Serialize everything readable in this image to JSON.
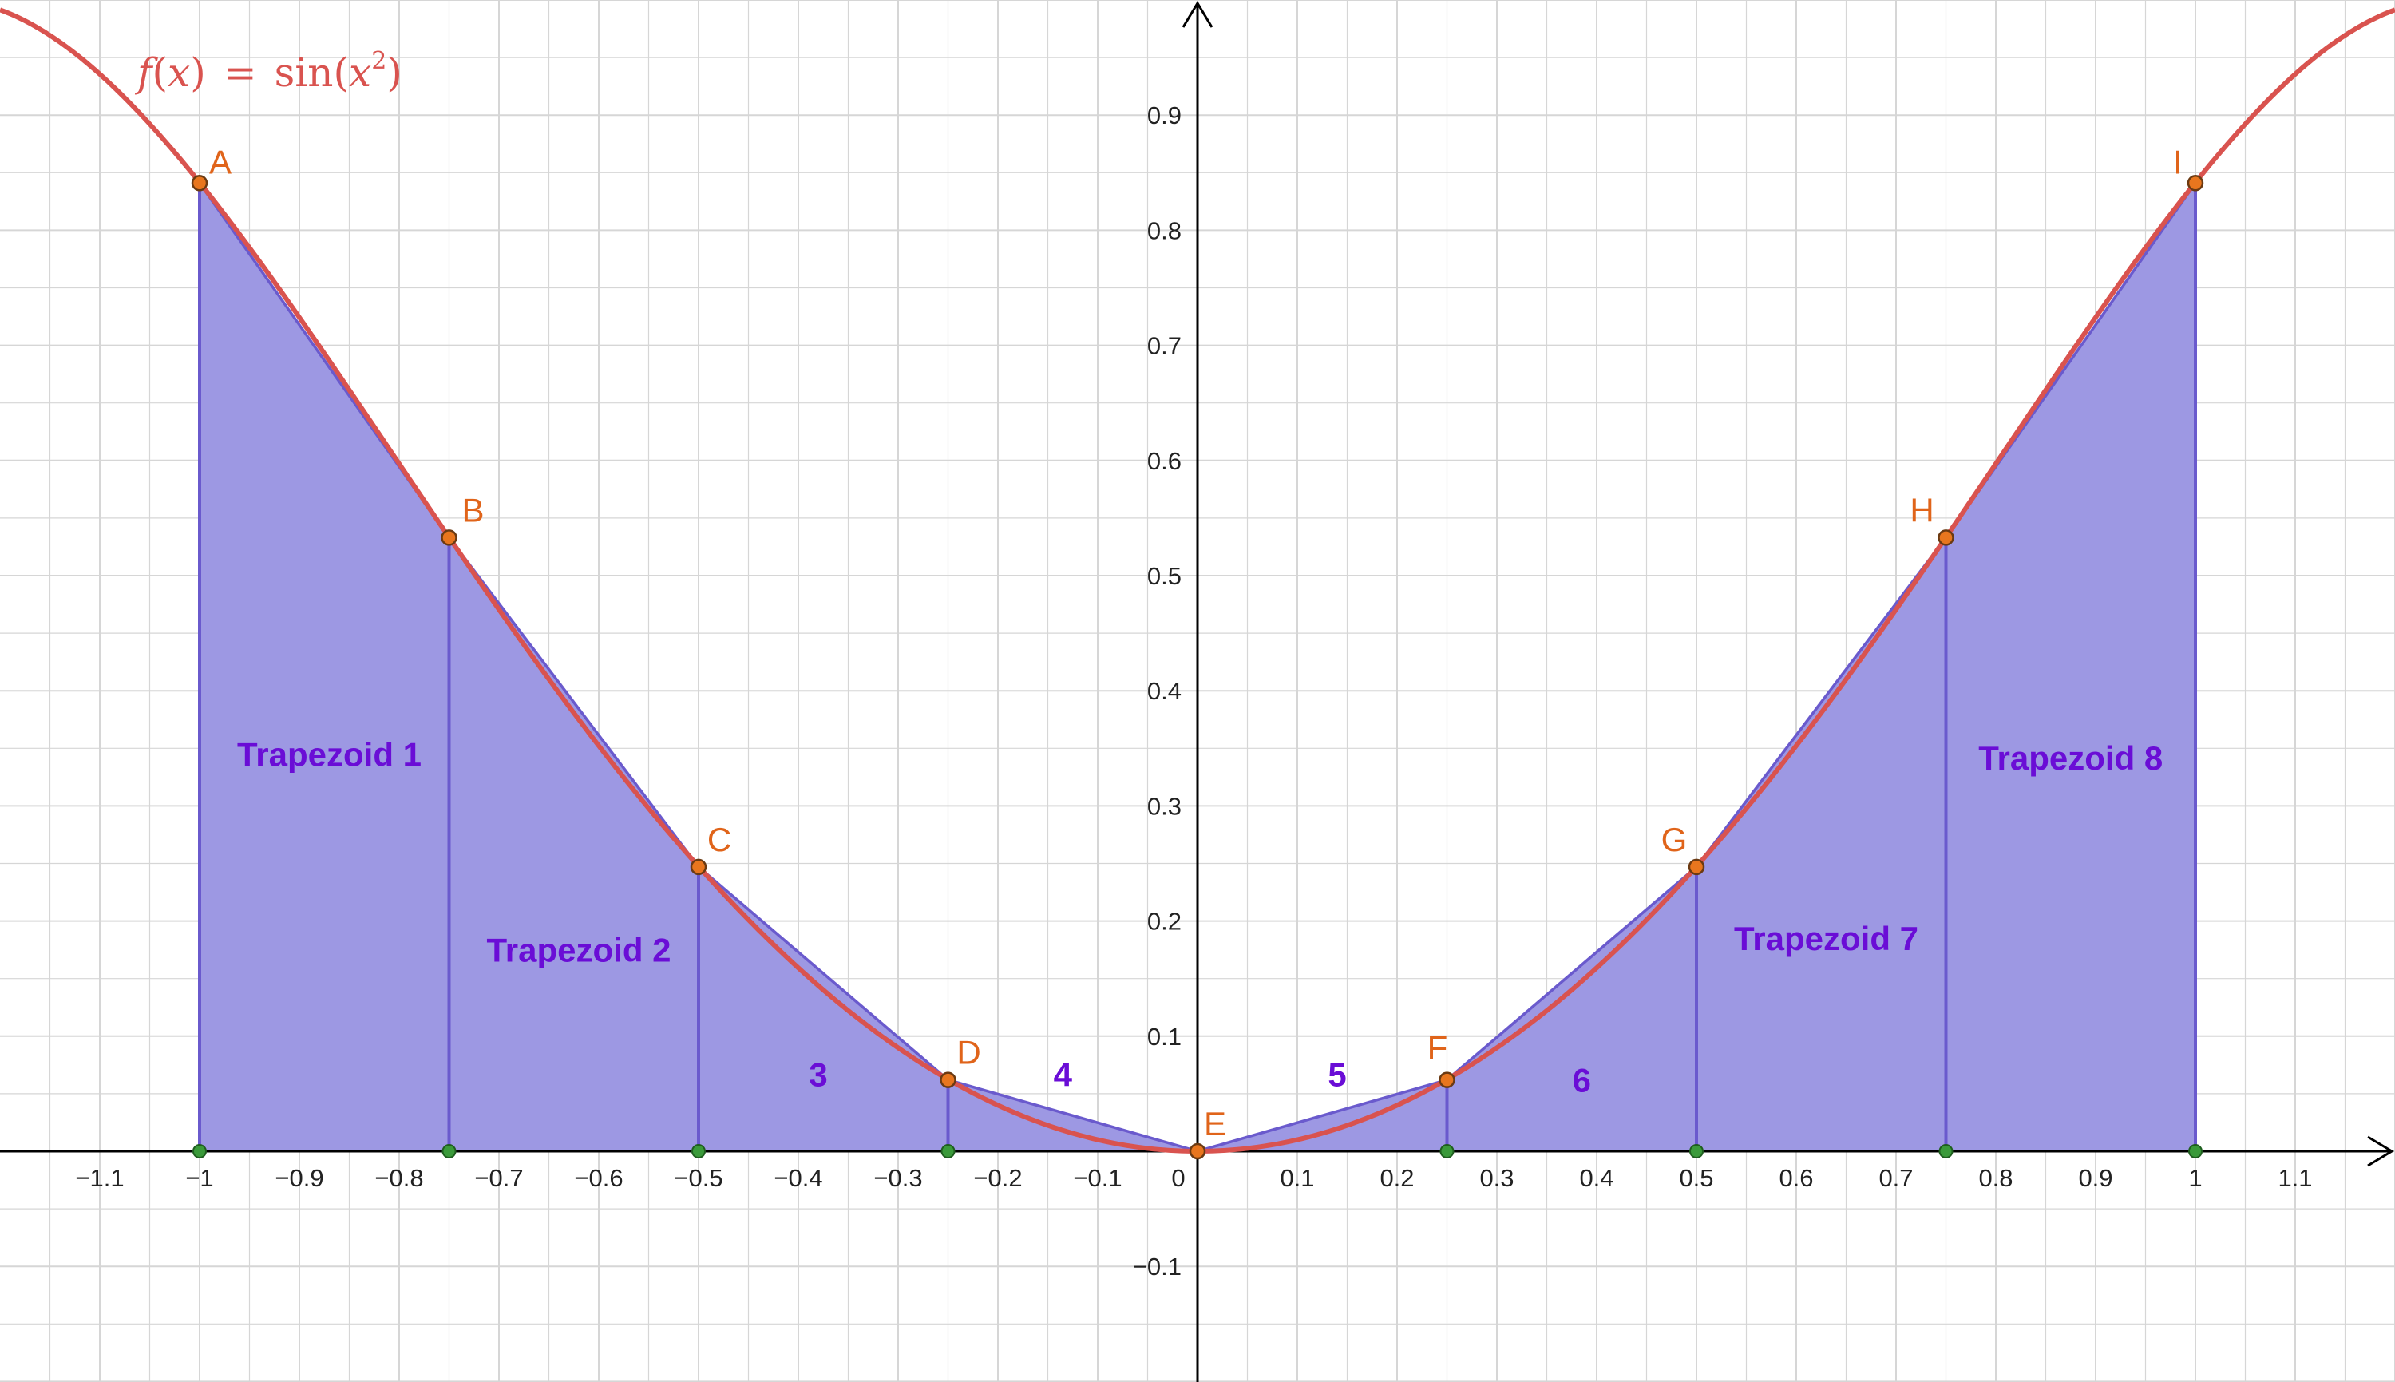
{
  "function_label": {
    "name": "f",
    "arg": "x",
    "equals": "=",
    "body": "sin",
    "sup": "2"
  },
  "colors": {
    "curve": "#d9534f",
    "fill": "#9d98e3",
    "edge": "#6a5acd",
    "point": "#e8761e",
    "point_stroke": "#6b3a12",
    "foot_point": "#3a9a3a",
    "label_orange": "#e0641a",
    "label_purple": "#6a0dd6",
    "grid": "#d6d6d6",
    "axis": "#000000"
  },
  "chart_data": {
    "type": "area",
    "function": "sin(x^2)",
    "xlim": [
      -1.2,
      1.2
    ],
    "ylim": [
      -0.2,
      1.0
    ],
    "x_ticks": [
      -1.1,
      -1,
      -0.9,
      -0.8,
      -0.7,
      -0.6,
      -0.5,
      -0.4,
      -0.3,
      -0.2,
      -0.1,
      0,
      0.1,
      0.2,
      0.3,
      0.4,
      0.5,
      0.6,
      0.7,
      0.8,
      0.9,
      1,
      1.1
    ],
    "x_tick_labels": [
      "−1.1",
      "−1",
      "−0.9",
      "−0.8",
      "−0.7",
      "−0.6",
      "−0.5",
      "−0.4",
      "−0.3",
      "−0.2",
      "−0.1",
      "0",
      "0.1",
      "0.2",
      "0.3",
      "0.4",
      "0.5",
      "0.6",
      "0.7",
      "0.8",
      "0.9",
      "1",
      "1.1"
    ],
    "y_ticks": [
      -0.1,
      0.1,
      0.2,
      0.3,
      0.4,
      0.5,
      0.6,
      0.7,
      0.8,
      0.9
    ],
    "y_tick_labels": [
      "−0.1",
      "0.1",
      "0.2",
      "0.3",
      "0.4",
      "0.5",
      "0.6",
      "0.7",
      "0.8",
      "0.9"
    ],
    "grid": true,
    "points": [
      {
        "name": "A",
        "x": -1,
        "y": 0.841
      },
      {
        "name": "B",
        "x": -0.75,
        "y": 0.533
      },
      {
        "name": "C",
        "x": -0.5,
        "y": 0.247
      },
      {
        "name": "D",
        "x": -0.25,
        "y": 0.062
      },
      {
        "name": "E",
        "x": 0,
        "y": 0
      },
      {
        "name": "F",
        "x": 0.25,
        "y": 0.062
      },
      {
        "name": "G",
        "x": 0.5,
        "y": 0.247
      },
      {
        "name": "H",
        "x": 0.75,
        "y": 0.533
      },
      {
        "name": "I",
        "x": 1,
        "y": 0.841
      }
    ],
    "trapezoid_labels": [
      {
        "text": "Trapezoid 1",
        "x": -0.87,
        "y": 0.345
      },
      {
        "text": "Trapezoid 2",
        "x": -0.62,
        "y": 0.175
      },
      {
        "text": "3",
        "x": -0.38,
        "y": 0.067
      },
      {
        "text": "4",
        "x": -0.135,
        "y": 0.067
      },
      {
        "text": "5",
        "x": 0.14,
        "y": 0.067
      },
      {
        "text": "6",
        "x": 0.385,
        "y": 0.062
      },
      {
        "text": "Trapezoid 7",
        "x": 0.63,
        "y": 0.185
      },
      {
        "text": "Trapezoid 8",
        "x": 0.875,
        "y": 0.342
      }
    ]
  }
}
